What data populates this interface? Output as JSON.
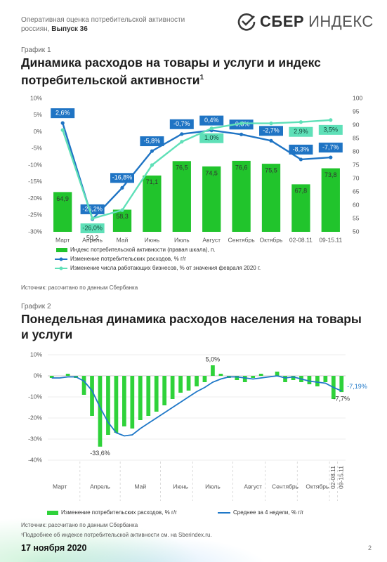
{
  "header": {
    "text": "Оперативная оценка потребительской активности россиян,",
    "issue": "Выпуск 36",
    "logo_bold": "СБЕР",
    "logo_light": "ИНДЕКС"
  },
  "chart_data": [
    {
      "type": "combo",
      "label": "График 1",
      "title": "Динамика расходов на товары и услуги и индекс потребительской активности",
      "title_note": "1",
      "categories": [
        "Март",
        "Апрель",
        "Май",
        "Июнь",
        "Июль",
        "Август",
        "Сентябрь",
        "Октябрь",
        "02-08.11",
        "09-15.11"
      ],
      "ylim": [
        -30,
        10
      ],
      "yticks": [
        {
          "value": 10,
          "label": "10%"
        },
        {
          "value": 5,
          "label": "5%"
        },
        {
          "value": 0,
          "label": "0%"
        },
        {
          "value": -5,
          "label": "-5%"
        },
        {
          "value": -10,
          "label": "-10%"
        },
        {
          "value": -15,
          "label": "-15%"
        },
        {
          "value": -20,
          "label": "-20%"
        },
        {
          "value": -25,
          "label": "-25%"
        },
        {
          "value": -30,
          "label": "-30%"
        }
      ],
      "y2lim": [
        50,
        100
      ],
      "y2ticks": [
        100,
        95,
        90,
        85,
        80,
        75,
        70,
        65,
        60,
        55,
        50
      ],
      "grid": false,
      "series": [
        {
          "name": "Индекс потребительской активности (правая шкала), п.",
          "type": "bar",
          "axis": "y2",
          "color": "#21c42c",
          "values": [
            64.9,
            50.2,
            58.3,
            71.1,
            76.5,
            74.5,
            76.6,
            75.5,
            67.8,
            73.8
          ],
          "value_labels": [
            "64,9",
            "50,2",
            "58,3",
            "71,1",
            "76,5",
            "74,5",
            "76,6",
            "75,5",
            "67,8",
            "73,8"
          ]
        },
        {
          "name": "Изменение потребительских расходов, % г/г",
          "type": "line",
          "color": "#1f74c4",
          "markers": true,
          "values": [
            2.6,
            -26.2,
            -16.8,
            -5.8,
            -0.7,
            0.4,
            -0.8,
            -2.7,
            -8.3,
            -7.7
          ],
          "value_labels": [
            "2,6%",
            "-26,2%",
            "-16,8%",
            "-5,8%",
            "-0,7%",
            "0,4%",
            "-0,8%",
            "-2,7%",
            "-8,3%",
            "-7,7%"
          ]
        },
        {
          "name": "Изменение числа работающих бизнесов, % от значения февраля 2020 г.",
          "type": "line",
          "color": "#5fe0b8",
          "markers": true,
          "values": [
            0.5,
            -26.0,
            -23.5,
            -10.0,
            -3.0,
            1.0,
            2.5,
            2.5,
            2.9,
            3.5
          ],
          "value_labels": [
            null,
            "-26,0%",
            null,
            null,
            null,
            "1,0%",
            null,
            null,
            "2,9%",
            "3,5%"
          ]
        }
      ],
      "source": "Источник: рассчитано по данным Сбербанка"
    },
    {
      "type": "combo",
      "label": "График 2",
      "title": "Понедельная динамика расходов населения на товары и услуги",
      "categories": [
        null,
        "Март",
        null,
        null,
        null,
        null,
        "Апрель",
        null,
        null,
        null,
        null,
        "Май",
        null,
        null,
        null,
        null,
        "Июнь",
        null,
        null,
        null,
        "Июль",
        null,
        null,
        null,
        null,
        "Август",
        null,
        null,
        null,
        "Сентябрь",
        null,
        null,
        null,
        "Октябрь",
        null,
        "02-08.11",
        "09-15.11"
      ],
      "ylim": [
        -40,
        10
      ],
      "yticks": [
        {
          "value": 10,
          "label": "10%"
        },
        {
          "value": 0,
          "label": "0%"
        },
        {
          "value": -10,
          "label": "-10%"
        },
        {
          "value": -20,
          "label": "-20%"
        },
        {
          "value": -30,
          "label": "-30%"
        },
        {
          "value": -40,
          "label": "-40%"
        }
      ],
      "grid": true,
      "series": [
        {
          "name": "Изменение потребительских расходов, % г/г",
          "type": "bar",
          "color": "#2fd23a",
          "values": [
            -1,
            0,
            1,
            -1,
            -9,
            -19,
            -33.6,
            -28,
            -27,
            -24,
            -25,
            -21,
            -19,
            -17,
            -14,
            -11,
            -8,
            -7,
            -5,
            -3,
            5.0,
            1,
            -1,
            -2,
            -3,
            -1,
            1,
            0,
            2,
            -3,
            -2,
            -3,
            -4,
            -5,
            -3,
            -11,
            -7.7
          ],
          "value_labels": [
            null,
            null,
            null,
            null,
            null,
            null,
            "-33,6%",
            null,
            null,
            null,
            null,
            null,
            null,
            null,
            null,
            null,
            null,
            null,
            null,
            null,
            "5,0%",
            null,
            null,
            null,
            null,
            null,
            null,
            null,
            null,
            null,
            null,
            null,
            null,
            null,
            null,
            null,
            "-7,7%"
          ]
        },
        {
          "name": "Среднее за 4 недели, % г/г",
          "type": "line",
          "color": "#1f78c8",
          "markers": false,
          "values": [
            -1,
            -1,
            -0.5,
            -0.5,
            -2.5,
            -7,
            -15,
            -22,
            -27,
            -28.5,
            -28,
            -25,
            -22.5,
            -20,
            -17.5,
            -15,
            -12.5,
            -10,
            -7.5,
            -5.5,
            -3,
            -1.5,
            -0.5,
            -0.5,
            -1,
            -1.5,
            -1,
            -0.5,
            0,
            -1,
            -0.5,
            -1.5,
            -2.5,
            -3,
            -3.5,
            -5.5,
            -7.19
          ],
          "value_labels": [
            null,
            null,
            null,
            null,
            null,
            null,
            null,
            null,
            null,
            null,
            null,
            null,
            null,
            null,
            null,
            null,
            null,
            null,
            null,
            null,
            null,
            null,
            null,
            null,
            null,
            null,
            null,
            null,
            null,
            null,
            null,
            null,
            null,
            null,
            null,
            null,
            "-7,19%"
          ]
        }
      ],
      "source": "Источник: рассчитано по данным Сбербанка"
    }
  ],
  "footer": {
    "note": "¹Подробнее об индексе потребительской активности см. на Sberindex.ru.",
    "date": "17 ноября 2020",
    "page": "2"
  }
}
